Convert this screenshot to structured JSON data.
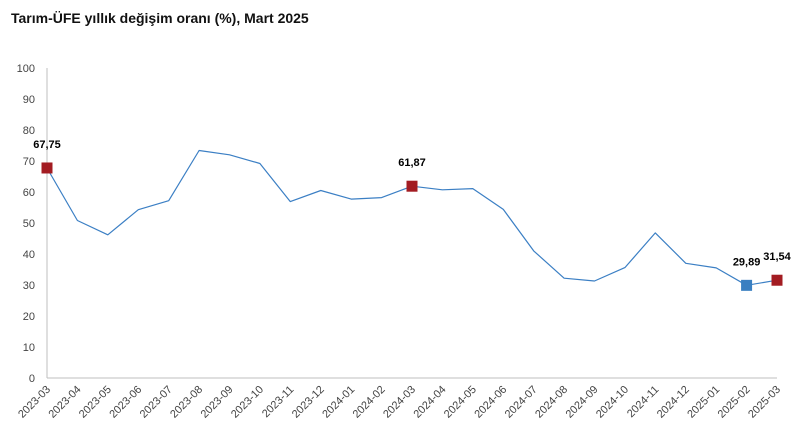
{
  "chart_data": {
    "type": "line",
    "title": "Tarım-ÜFE yıllık değişim oranı (%), Mart 2025",
    "xlabel": "",
    "ylabel": "",
    "ylim": [
      0,
      100
    ],
    "yticks": [
      0,
      10,
      20,
      30,
      40,
      50,
      60,
      70,
      80,
      90,
      100
    ],
    "grid": false,
    "legend": "none",
    "categories": [
      "2023-03",
      "2023-04",
      "2023-05",
      "2023-06",
      "2023-07",
      "2023-08",
      "2023-09",
      "2023-10",
      "2023-11",
      "2023-12",
      "2024-01",
      "2024-02",
      "2024-03",
      "2024-04",
      "2024-05",
      "2024-06",
      "2024-07",
      "2024-08",
      "2024-09",
      "2024-10",
      "2024-11",
      "2024-12",
      "2025-01",
      "2025-02",
      "2025-03"
    ],
    "series": [
      {
        "values": [
          67.75,
          50.8,
          46.2,
          54.3,
          57.2,
          73.4,
          72.0,
          69.2,
          56.9,
          60.5,
          57.7,
          58.2,
          61.87,
          60.7,
          61.1,
          54.4,
          41.0,
          32.2,
          31.3,
          35.6,
          46.8,
          37.0,
          35.5,
          29.89,
          31.54
        ],
        "color": "#3b7fc4"
      }
    ],
    "highlights": [
      {
        "category": "2023-03",
        "value": 67.75,
        "label": "67,75",
        "color": "#a31c22"
      },
      {
        "category": "2024-03",
        "value": 61.87,
        "label": "61,87",
        "color": "#a31c22"
      },
      {
        "category": "2025-02",
        "value": 29.89,
        "label": "29,89",
        "color": "#3a7fc1"
      },
      {
        "category": "2025-03",
        "value": 31.54,
        "label": "31,54",
        "color": "#a31c22"
      }
    ]
  }
}
